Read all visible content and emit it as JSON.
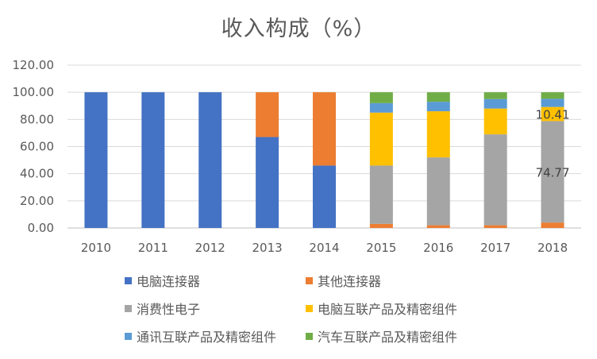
{
  "chart_data": {
    "type": "bar",
    "stacked": true,
    "title": "收入构成（%）",
    "xlabel": "",
    "ylabel": "",
    "ylim": [
      0,
      120
    ],
    "yticks": [
      "0.00",
      "20.00",
      "40.00",
      "60.00",
      "80.00",
      "100.00",
      "120.00"
    ],
    "grid": true,
    "legend_position": "bottom",
    "categories": [
      "2010",
      "2011",
      "2012",
      "2013",
      "2014",
      "2015",
      "2016",
      "2017",
      "2018"
    ],
    "series": [
      {
        "name": "电脑连接器",
        "color": "#4472C4",
        "values": [
          100,
          100,
          100,
          67,
          46,
          0,
          0,
          0,
          0
        ]
      },
      {
        "name": "其他连接器",
        "color": "#ED7D31",
        "values": [
          0,
          0,
          0,
          33,
          54,
          3,
          2,
          2,
          4
        ]
      },
      {
        "name": "消费性电子",
        "color": "#A5A5A5",
        "values": [
          0,
          0,
          0,
          0,
          0,
          43,
          50,
          67,
          74.77
        ]
      },
      {
        "name": "电脑互联产品及精密组件",
        "color": "#FFC000",
        "values": [
          0,
          0,
          0,
          0,
          0,
          39,
          34,
          19,
          10.41
        ]
      },
      {
        "name": "通讯互联产品及精密组件",
        "color": "#5B9BD5",
        "values": [
          0,
          0,
          0,
          0,
          0,
          7,
          7,
          7,
          6
        ]
      },
      {
        "name": "汽车互联产品及精密组件",
        "color": "#70AD47",
        "values": [
          0,
          0,
          0,
          0,
          0,
          8,
          7,
          5,
          4.82
        ]
      }
    ],
    "annotations": [
      {
        "category": "2018",
        "series": "电脑互联产品及精密组件",
        "text": "10.41"
      },
      {
        "category": "2018",
        "series": "消费性电子",
        "text": "74.77"
      }
    ]
  }
}
